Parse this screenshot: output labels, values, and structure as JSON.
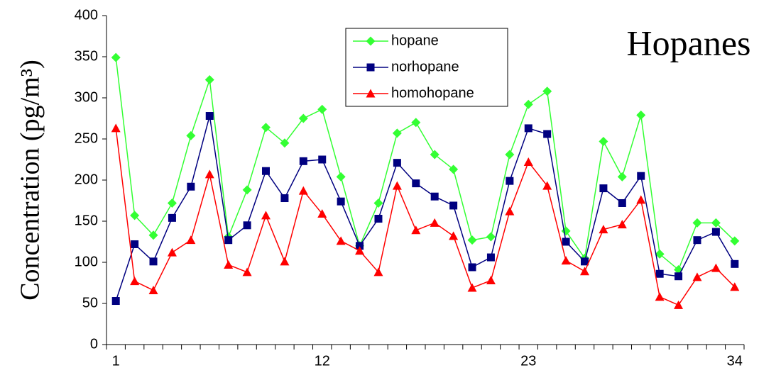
{
  "chart_data": {
    "type": "line",
    "title": "Hopanes",
    "y_label": "Concentration (pg/m³)",
    "x": [
      1,
      2,
      3,
      4,
      5,
      6,
      7,
      8,
      9,
      10,
      11,
      12,
      13,
      14,
      15,
      16,
      17,
      18,
      19,
      20,
      21,
      22,
      23,
      24,
      25,
      26,
      27,
      28,
      29,
      30,
      31,
      32,
      33,
      34
    ],
    "xlim": [
      0.5,
      34.5
    ],
    "xticks": [
      1,
      12,
      23,
      34
    ],
    "ylim": [
      0,
      400
    ],
    "yticks": [
      0,
      50,
      100,
      150,
      200,
      250,
      300,
      350,
      400
    ],
    "legend": "top-center",
    "series": [
      {
        "name": "hopane",
        "color": "#33ff33",
        "marker": "diamond",
        "values": [
          349,
          157,
          133,
          172,
          254,
          322,
          131,
          188,
          264,
          245,
          275,
          286,
          204,
          120,
          172,
          257,
          270,
          231,
          213,
          127,
          131,
          231,
          292,
          308,
          138,
          105,
          247,
          204,
          279,
          110,
          91,
          148,
          148,
          126
        ]
      },
      {
        "name": "norhopane",
        "color": "#000080",
        "marker": "square",
        "values": [
          53,
          122,
          101,
          154,
          192,
          278,
          127,
          145,
          211,
          178,
          223,
          225,
          174,
          120,
          153,
          221,
          196,
          180,
          169,
          94,
          106,
          199,
          263,
          256,
          125,
          101,
          190,
          172,
          205,
          86,
          83,
          127,
          137,
          98
        ]
      },
      {
        "name": "homohopane",
        "color": "#ff0000",
        "marker": "triangle",
        "values": [
          263,
          77,
          66,
          112,
          127,
          207,
          97,
          88,
          157,
          101,
          187,
          159,
          126,
          114,
          88,
          193,
          139,
          148,
          132,
          69,
          78,
          162,
          222,
          193,
          102,
          89,
          140,
          146,
          176,
          58,
          48,
          82,
          93,
          70
        ]
      }
    ]
  }
}
